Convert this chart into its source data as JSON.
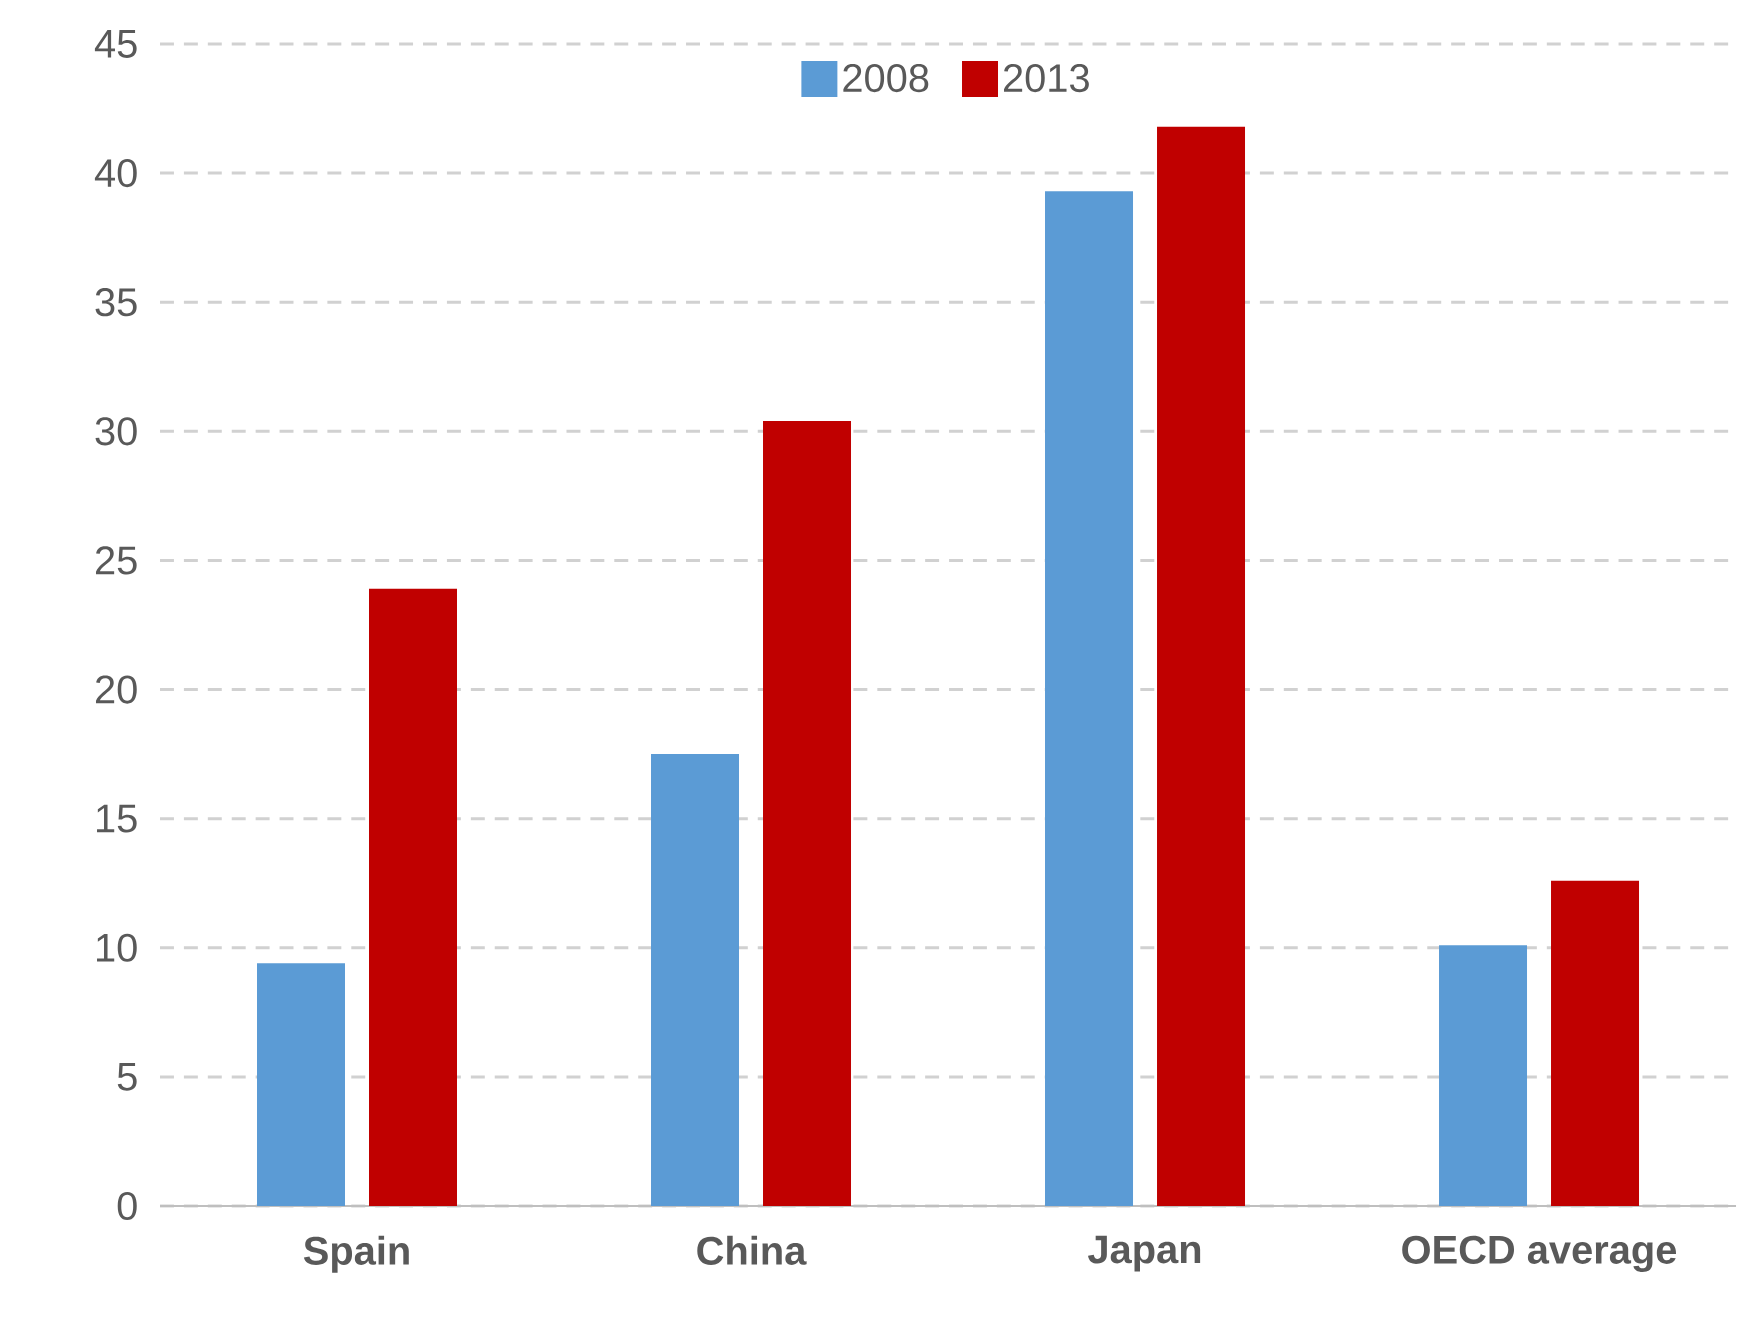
{
  "chart_data": {
    "type": "bar",
    "categories": [
      "Spain",
      "China",
      "Japan",
      "OECD average"
    ],
    "series": [
      {
        "name": "2008",
        "color": "#5b9bd5",
        "values": [
          9.4,
          17.5,
          39.3,
          10.1
        ]
      },
      {
        "name": "2013",
        "color": "#c00000",
        "values": [
          23.9,
          30.4,
          41.8,
          12.6
        ]
      }
    ],
    "ylim": [
      0,
      45
    ],
    "yticks": [
      0,
      5,
      10,
      15,
      20,
      25,
      30,
      35,
      40,
      45
    ],
    "grid": "y",
    "legend": "top"
  }
}
